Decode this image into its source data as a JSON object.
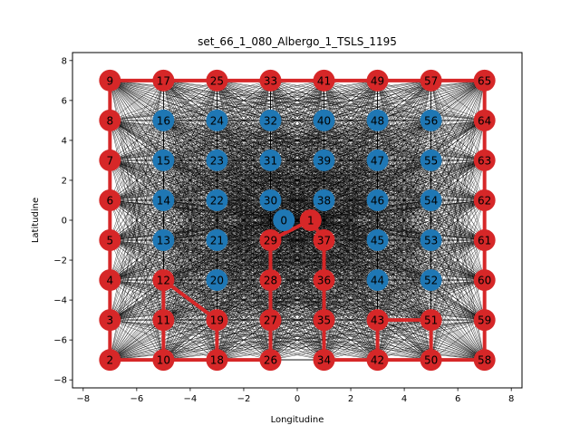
{
  "chart_data": {
    "type": "scatter",
    "title": "set_66_1_080_Albergo_1_TSLS_1195",
    "xlabel": "Longitudine",
    "ylabel": "Latitudine",
    "xlim": [
      -8.4,
      8.4
    ],
    "ylim": [
      -8.4,
      8.4
    ],
    "xticks": [
      -8,
      -6,
      -4,
      -2,
      0,
      2,
      4,
      6,
      8
    ],
    "yticks": [
      -8,
      -6,
      -4,
      -2,
      0,
      2,
      4,
      6,
      8
    ],
    "grid": false,
    "colors": {
      "depot": "#1f77b4",
      "visited": "#d62728",
      "edges": "#000000"
    },
    "nodes": [
      {
        "id": 0,
        "x": -0.5,
        "y": 0,
        "visited": false
      },
      {
        "id": 1,
        "x": 0.5,
        "y": 0,
        "visited": true
      },
      {
        "id": 2,
        "x": -7,
        "y": -7,
        "visited": true
      },
      {
        "id": 3,
        "x": -7,
        "y": -5,
        "visited": true
      },
      {
        "id": 4,
        "x": -7,
        "y": -3,
        "visited": true
      },
      {
        "id": 5,
        "x": -7,
        "y": -1,
        "visited": true
      },
      {
        "id": 6,
        "x": -7,
        "y": 1,
        "visited": true
      },
      {
        "id": 7,
        "x": -7,
        "y": 3,
        "visited": true
      },
      {
        "id": 8,
        "x": -7,
        "y": 5,
        "visited": true
      },
      {
        "id": 9,
        "x": -7,
        "y": 7,
        "visited": true
      },
      {
        "id": 10,
        "x": -5,
        "y": -7,
        "visited": true
      },
      {
        "id": 11,
        "x": -5,
        "y": -5,
        "visited": true
      },
      {
        "id": 12,
        "x": -5,
        "y": -3,
        "visited": true
      },
      {
        "id": 13,
        "x": -5,
        "y": -1,
        "visited": false
      },
      {
        "id": 14,
        "x": -5,
        "y": 1,
        "visited": false
      },
      {
        "id": 15,
        "x": -5,
        "y": 3,
        "visited": false
      },
      {
        "id": 16,
        "x": -5,
        "y": 5,
        "visited": false
      },
      {
        "id": 17,
        "x": -5,
        "y": 7,
        "visited": true
      },
      {
        "id": 18,
        "x": -3,
        "y": -7,
        "visited": true
      },
      {
        "id": 19,
        "x": -3,
        "y": -5,
        "visited": true
      },
      {
        "id": 20,
        "x": -3,
        "y": -3,
        "visited": false
      },
      {
        "id": 21,
        "x": -3,
        "y": -1,
        "visited": false
      },
      {
        "id": 22,
        "x": -3,
        "y": 1,
        "visited": false
      },
      {
        "id": 23,
        "x": -3,
        "y": 3,
        "visited": false
      },
      {
        "id": 24,
        "x": -3,
        "y": 5,
        "visited": false
      },
      {
        "id": 25,
        "x": -3,
        "y": 7,
        "visited": true
      },
      {
        "id": 26,
        "x": -1,
        "y": -7,
        "visited": true
      },
      {
        "id": 27,
        "x": -1,
        "y": -5,
        "visited": true
      },
      {
        "id": 28,
        "x": -1,
        "y": -3,
        "visited": true
      },
      {
        "id": 29,
        "x": -1,
        "y": -1,
        "visited": true
      },
      {
        "id": 30,
        "x": -1,
        "y": 1,
        "visited": false
      },
      {
        "id": 31,
        "x": -1,
        "y": 3,
        "visited": false
      },
      {
        "id": 32,
        "x": -1,
        "y": 5,
        "visited": false
      },
      {
        "id": 33,
        "x": -1,
        "y": 7,
        "visited": true
      },
      {
        "id": 34,
        "x": 1,
        "y": -7,
        "visited": true
      },
      {
        "id": 35,
        "x": 1,
        "y": -5,
        "visited": true
      },
      {
        "id": 36,
        "x": 1,
        "y": -3,
        "visited": true
      },
      {
        "id": 37,
        "x": 1,
        "y": -1,
        "visited": true
      },
      {
        "id": 38,
        "x": 1,
        "y": 1,
        "visited": false
      },
      {
        "id": 39,
        "x": 1,
        "y": 3,
        "visited": false
      },
      {
        "id": 40,
        "x": 1,
        "y": 5,
        "visited": false
      },
      {
        "id": 41,
        "x": 1,
        "y": 7,
        "visited": true
      },
      {
        "id": 42,
        "x": 3,
        "y": -7,
        "visited": true
      },
      {
        "id": 43,
        "x": 3,
        "y": -5,
        "visited": true
      },
      {
        "id": 44,
        "x": 3,
        "y": -3,
        "visited": false
      },
      {
        "id": 45,
        "x": 3,
        "y": -1,
        "visited": false
      },
      {
        "id": 46,
        "x": 3,
        "y": 1,
        "visited": false
      },
      {
        "id": 47,
        "x": 3,
        "y": 3,
        "visited": false
      },
      {
        "id": 48,
        "x": 3,
        "y": 5,
        "visited": false
      },
      {
        "id": 49,
        "x": 3,
        "y": 7,
        "visited": true
      },
      {
        "id": 50,
        "x": 5,
        "y": -7,
        "visited": true
      },
      {
        "id": 51,
        "x": 5,
        "y": -5,
        "visited": true
      },
      {
        "id": 52,
        "x": 5,
        "y": -3,
        "visited": false
      },
      {
        "id": 53,
        "x": 5,
        "y": -1,
        "visited": false
      },
      {
        "id": 54,
        "x": 5,
        "y": 1,
        "visited": false
      },
      {
        "id": 55,
        "x": 5,
        "y": 3,
        "visited": false
      },
      {
        "id": 56,
        "x": 5,
        "y": 5,
        "visited": false
      },
      {
        "id": 57,
        "x": 5,
        "y": 7,
        "visited": true
      },
      {
        "id": 58,
        "x": 7,
        "y": -7,
        "visited": true
      },
      {
        "id": 59,
        "x": 7,
        "y": -5,
        "visited": true
      },
      {
        "id": 60,
        "x": 7,
        "y": -3,
        "visited": true
      },
      {
        "id": 61,
        "x": 7,
        "y": -1,
        "visited": true
      },
      {
        "id": 62,
        "x": 7,
        "y": 1,
        "visited": true
      },
      {
        "id": 63,
        "x": 7,
        "y": 3,
        "visited": true
      },
      {
        "id": 64,
        "x": 7,
        "y": 5,
        "visited": true
      },
      {
        "id": 65,
        "x": 7,
        "y": 7,
        "visited": true
      }
    ],
    "route": [
      [
        1,
        29
      ],
      [
        29,
        28
      ],
      [
        28,
        27
      ],
      [
        27,
        26
      ],
      [
        26,
        18
      ],
      [
        18,
        10
      ],
      [
        10,
        2
      ],
      [
        2,
        3
      ],
      [
        3,
        4
      ],
      [
        4,
        5
      ],
      [
        5,
        6
      ],
      [
        6,
        7
      ],
      [
        7,
        8
      ],
      [
        8,
        9
      ],
      [
        9,
        17
      ],
      [
        17,
        25
      ],
      [
        25,
        33
      ],
      [
        33,
        41
      ],
      [
        41,
        49
      ],
      [
        49,
        57
      ],
      [
        57,
        65
      ],
      [
        65,
        64
      ],
      [
        64,
        63
      ],
      [
        63,
        62
      ],
      [
        62,
        61
      ],
      [
        61,
        60
      ],
      [
        60,
        59
      ],
      [
        59,
        58
      ],
      [
        58,
        50
      ],
      [
        50,
        42
      ],
      [
        42,
        34
      ],
      [
        1,
        37
      ],
      [
        37,
        36
      ],
      [
        36,
        35
      ],
      [
        35,
        34
      ],
      [
        11,
        10
      ],
      [
        11,
        12
      ],
      [
        12,
        19
      ],
      [
        19,
        18
      ],
      [
        43,
        42
      ],
      [
        43,
        51
      ],
      [
        51,
        50
      ]
    ]
  }
}
